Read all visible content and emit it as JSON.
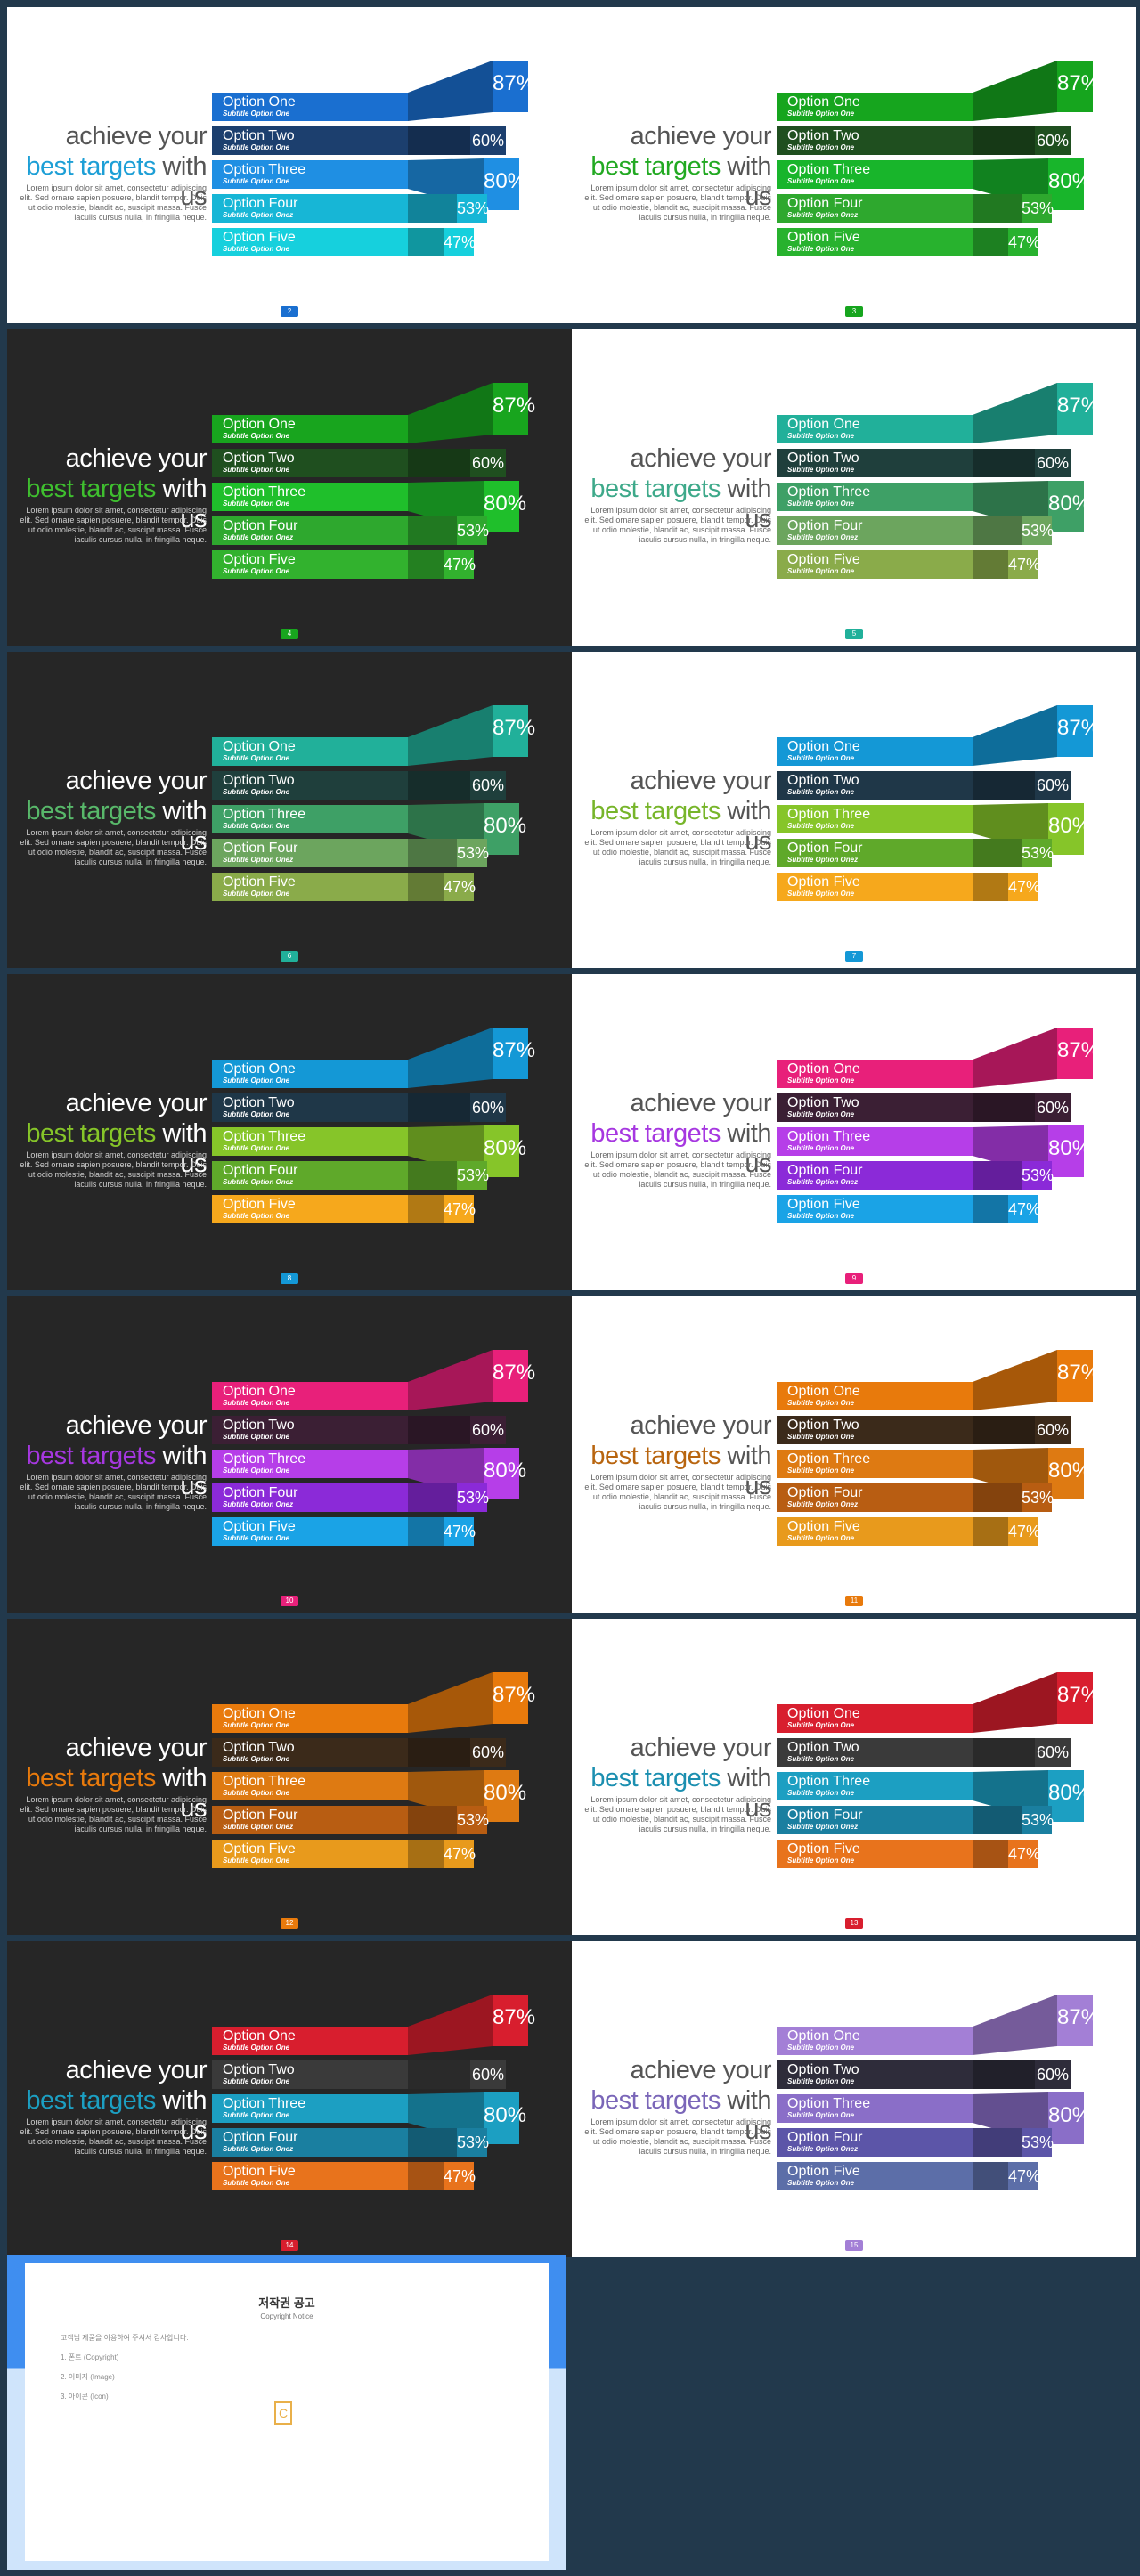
{
  "template": {
    "headline_line1": "achieve your",
    "headline_accent": "best targets",
    "headline_with": "with",
    "headline_us": "us",
    "body": "Lorem ipsum dolor sit amet, consectetur adipiscing elit. Sed ornare sapien posuere, blandit tempor. Duis ut odio molestie, blandit ac, suscipit massa. Fusce iaculis cursus nulla, in fringilla neque.",
    "options": [
      {
        "label": "Option One",
        "subtitle": "Subtitle Option One",
        "percent": "87%",
        "value": 87
      },
      {
        "label": "Option Two",
        "subtitle": "Subtitle Option One",
        "percent": "60%",
        "value": 60
      },
      {
        "label": "Option Three",
        "subtitle": "Subtitle Option One",
        "percent": "80%",
        "value": 80
      },
      {
        "label": "Option Four",
        "subtitle": "Subtitle Option Onez",
        "percent": "53%",
        "value": 53
      },
      {
        "label": "Option Five",
        "subtitle": "Subtitle Option One",
        "percent": "47%",
        "value": 47
      }
    ]
  },
  "slides": [
    {
      "page": "2",
      "theme": "light",
      "accent": "#1d9fd6",
      "colors": [
        "#1a6fd0",
        "#1c3f6e",
        "#1f8fe3",
        "#17b6d6",
        "#16d0dd"
      ]
    },
    {
      "page": "3",
      "theme": "light",
      "accent": "#22a922",
      "colors": [
        "#16a51e",
        "#1f4f1f",
        "#18b52b",
        "#2ea82e",
        "#28b22e"
      ]
    },
    {
      "page": "4",
      "theme": "dark",
      "accent": "#3fbf2f",
      "colors": [
        "#18a51e",
        "#1f4f1f",
        "#1fbf2b",
        "#2ea82e",
        "#32b22e"
      ]
    },
    {
      "page": "5",
      "theme": "light",
      "accent": "#3ea98a",
      "colors": [
        "#21b09a",
        "#1f3f3c",
        "#3ea066",
        "#6ca55e",
        "#8aab4a"
      ]
    },
    {
      "page": "6",
      "theme": "dark",
      "accent": "#58b86a",
      "colors": [
        "#21b09a",
        "#1f3f3c",
        "#3ea066",
        "#6ca55e",
        "#8aab4a"
      ]
    },
    {
      "page": "7",
      "theme": "light",
      "accent": "#77b52a",
      "colors": [
        "#1498d6",
        "#1f3748",
        "#86c529",
        "#5fa92a",
        "#f6a81c"
      ]
    },
    {
      "page": "8",
      "theme": "dark",
      "accent": "#86c529",
      "colors": [
        "#1498d6",
        "#1f3748",
        "#86c529",
        "#5fa92a",
        "#f6a81c"
      ]
    },
    {
      "page": "9",
      "theme": "light",
      "accent": "#a637e0",
      "colors": [
        "#e8207a",
        "#3b1f34",
        "#b63ee8",
        "#8b2ad8",
        "#1aa3e6"
      ]
    },
    {
      "page": "10",
      "theme": "dark",
      "accent": "#a637e0",
      "colors": [
        "#e8207a",
        "#3b1f34",
        "#b63ee8",
        "#8b2ad8",
        "#1aa3e6"
      ]
    },
    {
      "page": "11",
      "theme": "light",
      "accent": "#b8650f",
      "colors": [
        "#e87a0c",
        "#3b2a1a",
        "#de7a12",
        "#b85d12",
        "#e89a1c"
      ]
    },
    {
      "page": "12",
      "theme": "dark",
      "accent": "#e87a0c",
      "colors": [
        "#e87a0c",
        "#3b2a1a",
        "#de7a12",
        "#b85d12",
        "#e89a1c"
      ]
    },
    {
      "page": "13",
      "theme": "light",
      "accent": "#1b8fb0",
      "colors": [
        "#d81e2e",
        "#3a3a3a",
        "#1c9fc2",
        "#1a7fa0",
        "#e8731c"
      ]
    },
    {
      "page": "14",
      "theme": "dark",
      "accent": "#1c9fc2",
      "colors": [
        "#d81e2e",
        "#3a3a3a",
        "#1c9fc2",
        "#1a7fa0",
        "#e8731c"
      ]
    },
    {
      "page": "15",
      "theme": "light",
      "accent": "#7a66b8",
      "colors": [
        "#a37fd6",
        "#2e2c3a",
        "#8a6ec8",
        "#5c55a8",
        "#5c6ea8"
      ]
    }
  ],
  "copyright": {
    "title": "저작권 공고",
    "subtitle": "Copyright Notice",
    "paragraphs": [
      "고객님 제품을 이용하여 주셔서 감사합니다.",
      "1. 폰트 (Copyright)",
      "2. 이미지 (Image)",
      "3. 아이콘 (Icon)"
    ]
  }
}
